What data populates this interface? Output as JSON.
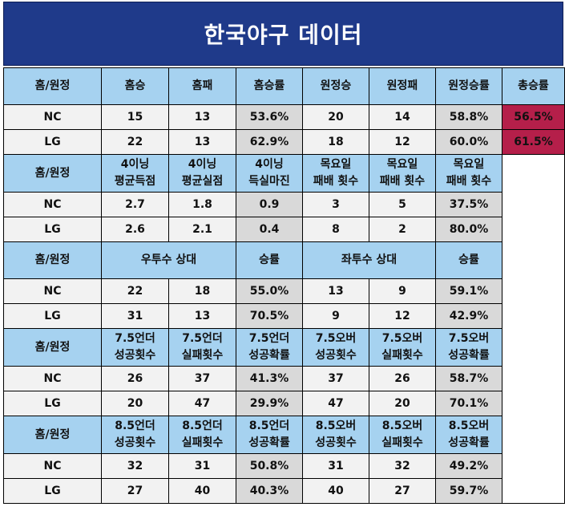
{
  "title": "한국야구 데이터",
  "accent_color": "#b51f4a",
  "header_color": "#a6d2f0",
  "title_color": "#1f3a8a",
  "section1": {
    "headers": [
      "홈/원정",
      "홈승",
      "홈패",
      "홈승률",
      "원정승",
      "원정패",
      "원정승률",
      "총승률"
    ],
    "rows": [
      {
        "team": "NC",
        "values": [
          "15",
          "13",
          "53.6%",
          "20",
          "14",
          "58.8%"
        ],
        "total": "56.5%"
      },
      {
        "team": "LG",
        "values": [
          "22",
          "13",
          "62.9%",
          "18",
          "12",
          "60.0%"
        ],
        "total": "61.5%"
      }
    ]
  },
  "section2": {
    "headers": [
      {
        "l1": "홈/원정",
        "l2": ""
      },
      {
        "l1": "4이닝",
        "l2": "평균득점"
      },
      {
        "l1": "4이닝",
        "l2": "평균실점"
      },
      {
        "l1": "4이닝",
        "l2": "득실마진"
      },
      {
        "l1": "목요일",
        "l2": "패배 횟수"
      },
      {
        "l1": "목요일",
        "l2": "패배 횟수"
      },
      {
        "l1": "목요일",
        "l2": "패배 횟수"
      }
    ],
    "rows": [
      {
        "team": "NC",
        "values": [
          "2.7",
          "1.8",
          "0.9",
          "3",
          "5",
          "37.5%"
        ]
      },
      {
        "team": "LG",
        "values": [
          "2.6",
          "2.1",
          "0.4",
          "8",
          "2",
          "80.0%"
        ]
      }
    ]
  },
  "section3": {
    "headers": {
      "home": "홈/원정",
      "right": "우투수 상대",
      "right_rate": "승률",
      "left": "좌투수 상대",
      "left_rate": "승률"
    },
    "rows": [
      {
        "team": "NC",
        "values": [
          "22",
          "18",
          "55.0%",
          "13",
          "9",
          "59.1%"
        ]
      },
      {
        "team": "LG",
        "values": [
          "31",
          "13",
          "70.5%",
          "9",
          "12",
          "42.9%"
        ]
      }
    ]
  },
  "section4": {
    "headers": [
      {
        "l1": "홈/원정",
        "l2": ""
      },
      {
        "l1": "7.5언더",
        "l2": "성공횟수"
      },
      {
        "l1": "7.5언더",
        "l2": "실패횟수"
      },
      {
        "l1": "7.5언더",
        "l2": "성공확률"
      },
      {
        "l1": "7.5오버",
        "l2": "성공횟수"
      },
      {
        "l1": "7.5오버",
        "l2": "실패횟수"
      },
      {
        "l1": "7.5오버",
        "l2": "성공확률"
      }
    ],
    "rows": [
      {
        "team": "NC",
        "values": [
          "26",
          "37",
          "41.3%",
          "37",
          "26",
          "58.7%"
        ]
      },
      {
        "team": "LG",
        "values": [
          "20",
          "47",
          "29.9%",
          "47",
          "20",
          "70.1%"
        ]
      }
    ]
  },
  "section5": {
    "headers": [
      {
        "l1": "홈/원정",
        "l2": ""
      },
      {
        "l1": "8.5언더",
        "l2": "성공횟수"
      },
      {
        "l1": "8.5언더",
        "l2": "실패횟수"
      },
      {
        "l1": "8.5언더",
        "l2": "성공확률"
      },
      {
        "l1": "8.5오버",
        "l2": "성공횟수"
      },
      {
        "l1": "8.5오버",
        "l2": "실패횟수"
      },
      {
        "l1": "8.5오버",
        "l2": "성공확률"
      }
    ],
    "rows": [
      {
        "team": "NC",
        "values": [
          "32",
          "31",
          "50.8%",
          "31",
          "32",
          "49.2%"
        ]
      },
      {
        "team": "LG",
        "values": [
          "27",
          "40",
          "40.3%",
          "40",
          "27",
          "59.7%"
        ]
      }
    ]
  }
}
